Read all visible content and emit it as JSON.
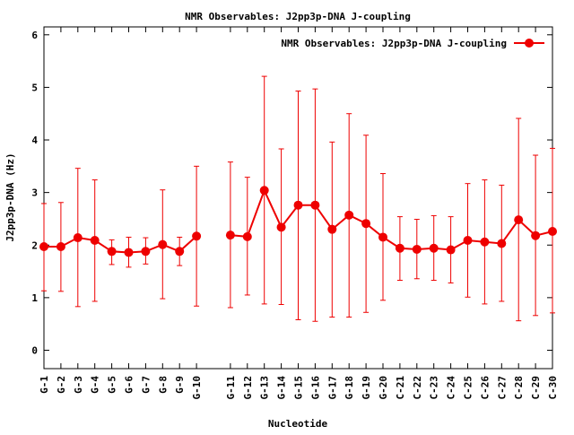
{
  "chart_data": {
    "type": "line",
    "title": "NMR Observables: J2pp3p-DNA J-coupling",
    "xlabel": "Nucleotide",
    "ylabel": "J2pp3p-DNA (Hz)",
    "ylim": [
      -0.35,
      6.15
    ],
    "yticks": [
      0,
      1,
      2,
      3,
      4,
      5,
      6
    ],
    "legend_position": "top-right",
    "grid": false,
    "colors": {
      "series": "#ee0000",
      "axis": "#000000",
      "background": "#ffffff"
    },
    "categories": [
      "G-1",
      "G-2",
      "G-3",
      "G-4",
      "G-5",
      "G-6",
      "G-7",
      "G-8",
      "G-9",
      "G-10",
      "G-11",
      "G-12",
      "G-13",
      "G-14",
      "G-15",
      "G-16",
      "G-17",
      "G-18",
      "G-19",
      "G-20",
      "C-21",
      "C-22",
      "C-23",
      "C-24",
      "C-25",
      "C-26",
      "C-27",
      "C-28",
      "C-29",
      "C-30"
    ],
    "x_positions": [
      1,
      2,
      3,
      4,
      5,
      6,
      7,
      8,
      9,
      10,
      12,
      13,
      14,
      15,
      16,
      17,
      18,
      19,
      20,
      21,
      22,
      23,
      24,
      25,
      26,
      27,
      28,
      29,
      30,
      31
    ],
    "xlim": [
      1,
      31
    ],
    "segments": [
      [
        0,
        9
      ],
      [
        10,
        29
      ]
    ],
    "series": [
      {
        "name": "NMR Observables: J2pp3p-DNA J-coupling",
        "values": [
          1.97,
          1.97,
          2.14,
          2.09,
          1.88,
          1.86,
          1.88,
          2.01,
          1.88,
          2.17,
          2.19,
          2.16,
          3.04,
          2.34,
          2.76,
          2.76,
          2.3,
          2.57,
          2.41,
          2.15,
          1.94,
          1.92,
          1.94,
          1.91,
          2.09,
          2.06,
          2.03,
          2.48,
          2.18,
          2.26
        ],
        "err_low": [
          1.13,
          1.12,
          0.83,
          0.93,
          1.63,
          1.58,
          1.64,
          0.98,
          1.61,
          0.84,
          0.81,
          1.05,
          0.88,
          0.87,
          0.58,
          0.55,
          0.63,
          0.63,
          0.72,
          0.95,
          1.33,
          1.36,
          1.33,
          1.28,
          1.01,
          0.88,
          0.93,
          0.56,
          0.66,
          0.71
        ],
        "err_high": [
          2.79,
          2.81,
          3.46,
          3.24,
          2.1,
          2.15,
          2.14,
          3.05,
          2.15,
          3.5,
          3.58,
          3.29,
          5.21,
          3.83,
          4.93,
          4.97,
          3.96,
          4.5,
          4.09,
          3.36,
          2.54,
          2.49,
          2.56,
          2.54,
          3.17,
          3.24,
          3.14,
          4.41,
          3.71,
          3.84
        ]
      }
    ]
  }
}
